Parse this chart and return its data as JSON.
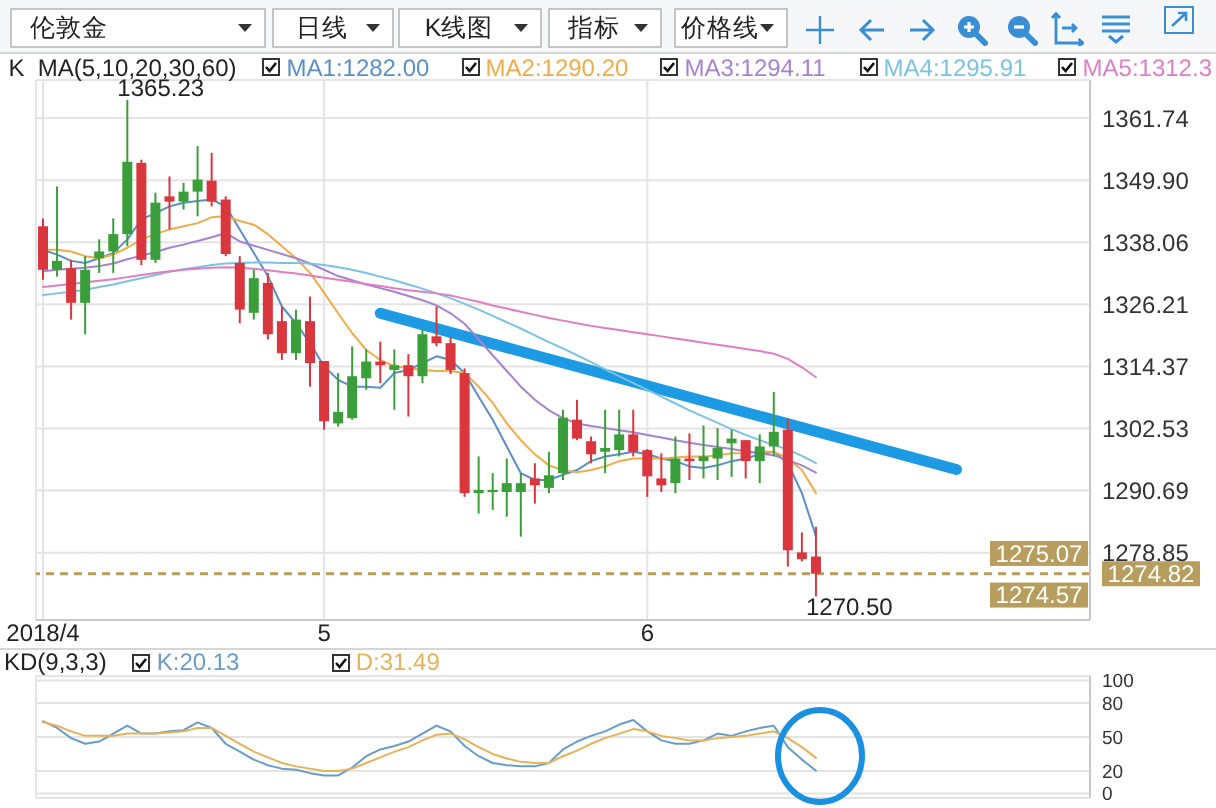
{
  "chart_data": [
    {
      "type": "candlestick",
      "title": "伦敦金",
      "annotations": [
        "日线",
        "K线图",
        "指标",
        "价格线",
        "1365.23",
        "1270.50",
        {
          "text": "1275.07",
          "y": 1275.07
        },
        {
          "text": "1274.57",
          "y": 1274.57
        }
      ],
      "legend_title": "K  MA(5,10,20,30,60)",
      "legend": "top right",
      "grid": true,
      "marker": "none",
      "categories": [
        "2018/4",
        null,
        null,
        null,
        null,
        null,
        null,
        null,
        null,
        null,
        null,
        null,
        null,
        null,
        null,
        null,
        null,
        null,
        null,
        null,
        "5",
        null,
        null,
        null,
        null,
        null,
        null,
        null,
        null,
        null,
        null,
        null,
        null,
        null,
        null,
        null,
        null,
        null,
        null,
        null,
        null,
        null,
        null,
        "6",
        null,
        null,
        null,
        null,
        null,
        null,
        null,
        null,
        null,
        null,
        null,
        null,
        null,
        null,
        null,
        null,
        null,
        null,
        null,
        null,
        null,
        null,
        null,
        null,
        null,
        null,
        null,
        null,
        null,
        null,
        null
      ],
      "ohlc": [
        [
          1341.1,
          1342.6,
          1330.9,
          1332.8
        ],
        [
          1332.8,
          1348.7,
          1331.5,
          1334.5
        ],
        [
          1333.1,
          1334.7,
          1323.3,
          1326.5
        ],
        [
          1326.5,
          1335.4,
          1320.5,
          1332.8
        ],
        [
          1335.0,
          1338.6,
          1332.2,
          1336.3
        ],
        [
          1336.3,
          1342.6,
          1332.2,
          1339.6
        ],
        [
          1339.6,
          1365.23,
          1337.3,
          1353.4
        ],
        [
          1353.2,
          1353.8,
          1333.7,
          1334.7
        ],
        [
          1334.7,
          1347.5,
          1334.1,
          1345.6
        ],
        [
          1346.8,
          1350.6,
          1340.5,
          1345.8
        ],
        [
          1345.8,
          1349.4,
          1344.3,
          1347.7
        ],
        [
          1347.7,
          1356.4,
          1343.0,
          1350.0
        ],
        [
          1349.8,
          1355.1,
          1344.9,
          1345.8
        ],
        [
          1346.2,
          1346.8,
          1335.4,
          1335.8
        ],
        [
          1334.1,
          1335.4,
          1322.6,
          1325.2
        ],
        [
          1324.6,
          1332.8,
          1323.3,
          1331.2
        ],
        [
          1330.3,
          1332.2,
          1319.5,
          1320.5
        ],
        [
          1323.0,
          1325.8,
          1315.6,
          1316.9
        ],
        [
          1316.9,
          1325.2,
          1315.6,
          1323.3
        ],
        [
          1323.0,
          1327.7,
          1310.5,
          1315.0
        ],
        [
          1315.4,
          1315.4,
          1302.3,
          1303.9
        ],
        [
          1303.5,
          1313.1,
          1302.9,
          1305.7
        ],
        [
          1304.5,
          1318.2,
          1304.2,
          1312.5
        ],
        [
          1312.1,
          1317.6,
          1309.9,
          1315.3
        ],
        [
          1315.3,
          1319.1,
          1311.2,
          1314.6
        ],
        [
          1313.7,
          1317.6,
          1306.1,
          1314.6
        ],
        [
          1314.6,
          1316.7,
          1304.8,
          1312.5
        ],
        [
          1312.5,
          1321.4,
          1311.2,
          1320.5
        ],
        [
          1320.1,
          1325.8,
          1318.2,
          1318.8
        ],
        [
          1318.8,
          1320.0,
          1312.9,
          1313.7
        ],
        [
          1313.1,
          1314.0,
          1289.5,
          1290.2
        ],
        [
          1290.2,
          1297.2,
          1286.3,
          1290.8
        ],
        [
          1290.4,
          1294.0,
          1287.0,
          1290.8
        ],
        [
          1290.4,
          1296.8,
          1285.7,
          1292.1
        ],
        [
          1290.4,
          1294.0,
          1281.9,
          1292.1
        ],
        [
          1293.0,
          1295.9,
          1288.2,
          1291.7
        ],
        [
          1291.2,
          1298.1,
          1290.2,
          1293.6
        ],
        [
          1294.0,
          1306.1,
          1292.7,
          1304.6
        ],
        [
          1304.2,
          1308.0,
          1300.3,
          1300.6
        ],
        [
          1300.1,
          1301.0,
          1295.9,
          1297.6
        ],
        [
          1298.1,
          1306.1,
          1294.0,
          1298.8
        ],
        [
          1298.4,
          1306.1,
          1297.2,
          1301.4
        ],
        [
          1301.4,
          1306.1,
          1297.2,
          1298.1
        ],
        [
          1298.4,
          1298.6,
          1289.5,
          1293.4
        ],
        [
          1293.0,
          1297.8,
          1290.4,
          1291.7
        ],
        [
          1292.1,
          1301.0,
          1290.2,
          1296.8
        ],
        [
          1296.8,
          1301.6,
          1292.7,
          1296.3
        ],
        [
          1296.3,
          1303.1,
          1293.0,
          1297.2
        ],
        [
          1296.8,
          1302.6,
          1292.7,
          1298.8
        ],
        [
          1299.7,
          1302.3,
          1293.3,
          1300.6
        ],
        [
          1300.3,
          1300.3,
          1293.0,
          1296.3
        ],
        [
          1296.3,
          1301.4,
          1292.1,
          1299.1
        ],
        [
          1299.1,
          1309.5,
          1297.2,
          1301.9
        ],
        [
          1302.3,
          1304.4,
          1276.2,
          1279.3
        ],
        [
          1278.9,
          1282.7,
          1277.2,
          1277.6
        ],
        [
          1278.1,
          1283.8,
          1270.5,
          1274.82
        ],
        null,
        null,
        null,
        null,
        null,
        null,
        null,
        null,
        null,
        null,
        null,
        null,
        null,
        null,
        null,
        null,
        null,
        null,
        null
      ],
      "colors": [
        "#d9363e",
        "#3a9e3a",
        "#d9363e",
        "#3a9e3a",
        "#3a9e3a",
        "#3a9e3a",
        "#3a9e3a",
        "#d9363e",
        "#3a9e3a",
        "#d9363e",
        "#3a9e3a",
        "#3a9e3a",
        "#d9363e",
        "#d9363e",
        "#d9363e",
        "#3a9e3a",
        "#d9363e",
        "#d9363e",
        "#3a9e3a",
        "#d9363e",
        "#d9363e",
        "#3a9e3a",
        "#3a9e3a",
        "#3a9e3a",
        "#d9363e",
        "#3a9e3a",
        "#d9363e",
        "#3a9e3a",
        "#d9363e",
        "#d9363e",
        "#d9363e",
        "#3a9e3a",
        "#3a9e3a",
        "#3a9e3a",
        "#3a9e3a",
        "#d9363e",
        "#3a9e3a",
        "#3a9e3a",
        "#d9363e",
        "#d9363e",
        "#3a9e3a",
        "#3a9e3a",
        "#d9363e",
        "#d9363e",
        "#d9363e",
        "#3a9e3a",
        "#d9363e",
        "#3a9e3a",
        "#3a9e3a",
        "#3a9e3a",
        "#d9363e",
        "#3a9e3a",
        "#3a9e3a",
        "#d9363e",
        "#d9363e",
        "#d9363e",
        null,
        null,
        null,
        null,
        null,
        null,
        null,
        null,
        null,
        null,
        null,
        null,
        null,
        null,
        null,
        null,
        null,
        null,
        null
      ],
      "series": [
        {
          "type": "line",
          "color": "#1c9be4",
          "values": [
            null,
            null,
            null,
            null,
            null,
            null,
            null,
            null,
            null,
            null,
            null,
            null,
            null,
            null,
            null,
            null,
            null,
            null,
            null,
            null,
            null,
            null,
            null,
            null,
            1324.5,
            null,
            null,
            null,
            null,
            null,
            null,
            null,
            null,
            null,
            null,
            null,
            null,
            null,
            null,
            null,
            null,
            null,
            null,
            null,
            null,
            null,
            null,
            null,
            null,
            null,
            null,
            null,
            null,
            null,
            null,
            null,
            null,
            null,
            null,
            null,
            null,
            null,
            null,
            null,
            null,
            1294.7,
            null,
            null,
            null,
            null,
            null,
            null,
            null,
            null,
            null
          ]
        },
        {
          "type": "line",
          "name": "MA1:1282.00",
          "color": "#5a8fc8",
          "values": [
            1336.6,
            1335.7,
            1334.5,
            1334.1,
            1335.0,
            1336.0,
            1338.6,
            1342.4,
            1343.6,
            1344.9,
            1345.6,
            1345.9,
            1346.2,
            1344.9,
            1340.5,
            1336.0,
            1331.6,
            1325.8,
            1322.6,
            1318.8,
            1314.4,
            1311.8,
            1310.5,
            1310.5,
            1310.3,
            1313.1,
            1313.7,
            1315.0,
            1316.3,
            1315.6,
            1313.1,
            1308.6,
            1304.2,
            1299.1,
            1294.0,
            1292.7,
            1292.7,
            1293.7,
            1294.6,
            1296.3,
            1297.2,
            1297.6,
            1298.1,
            1297.6,
            1296.8,
            1296.3,
            1295.3,
            1295.0,
            1295.5,
            1296.3,
            1296.8,
            1297.6,
            1298.1,
            1295.9,
            1290.2,
            1282,
            null,
            null,
            null,
            null,
            null,
            null,
            null,
            null,
            null,
            null,
            null,
            null,
            null,
            null,
            null,
            null,
            null,
            null,
            null
          ]
        },
        {
          "type": "line",
          "name": "MA2:1290.20",
          "color": "#f0ac48",
          "values": [
            1336.6,
            1336.6,
            1336.3,
            1335.4,
            1335.0,
            1335.7,
            1337.0,
            1338.6,
            1339.6,
            1340.5,
            1341.1,
            1341.7,
            1342.8,
            1343.0,
            1342.1,
            1341.4,
            1339.6,
            1337.3,
            1335.0,
            1332.2,
            1328.4,
            1324.5,
            1320.7,
            1317.5,
            1315.6,
            1314.4,
            1314.0,
            1313.7,
            1313.5,
            1313.5,
            1313.1,
            1310.5,
            1307.4,
            1303.5,
            1300.3,
            1297.6,
            1295.5,
            1294.6,
            1294.2,
            1294.6,
            1295.3,
            1296.3,
            1296.8,
            1296.8,
            1296.8,
            1297.0,
            1297.2,
            1297.2,
            1297.4,
            1297.8,
            1297.8,
            1298.1,
            1298.1,
            1296.8,
            1294.6,
            1290.2,
            null,
            null,
            null,
            null,
            null,
            null,
            null,
            null,
            null,
            null,
            null,
            null,
            null,
            null,
            null,
            null,
            null,
            null,
            null
          ]
        },
        {
          "type": "line",
          "name": "MA3:1294.11",
          "color": "#a882d2",
          "values": [
            1332.5,
            1332.8,
            1333.0,
            1333.2,
            1333.5,
            1334.0,
            1334.8,
            1335.5,
            1336.2,
            1337.0,
            1337.6,
            1338.3,
            1339.0,
            1339.8,
            1338.2,
            1337.4,
            1336.6,
            1335.8,
            1335.0,
            1334.0,
            1332.8,
            1331.6,
            1330.8,
            1330.0,
            1329.3,
            1328.6,
            1327.8,
            1327.0,
            1326.0,
            1324.5,
            1322.5,
            1319.5,
            1316.5,
            1313.5,
            1310.5,
            1308.0,
            1306.0,
            1304.5,
            1303.5,
            1303.0,
            1302.6,
            1302.2,
            1301.8,
            1301.3,
            1300.8,
            1300.3,
            1299.8,
            1299.4,
            1299.0,
            1298.6,
            1298.2,
            1297.8,
            1297.4,
            1296.5,
            1295.5,
            1294.11,
            null,
            null,
            null,
            null,
            null,
            null,
            null,
            null,
            null,
            null,
            null,
            null,
            null,
            null,
            null,
            null,
            null,
            null,
            null
          ]
        },
        {
          "type": "line",
          "name": "MA4:1295.91",
          "color": "#7cc2e2",
          "values": [
            1328.0,
            1328.3,
            1328.6,
            1329.0,
            1329.5,
            1330.0,
            1330.6,
            1331.2,
            1331.8,
            1332.4,
            1332.9,
            1333.3,
            1333.7,
            1334.0,
            1334.1,
            1334.2,
            1334.2,
            1334.1,
            1334.1,
            1334.0,
            1333.7,
            1333.3,
            1332.8,
            1332.2,
            1331.5,
            1330.8,
            1330.0,
            1329.2,
            1328.3,
            1327.4,
            1326.3,
            1325.2,
            1324.0,
            1322.8,
            1321.6,
            1320.3,
            1319.0,
            1317.8,
            1316.5,
            1315.2,
            1313.8,
            1312.5,
            1311.2,
            1309.9,
            1308.6,
            1307.3,
            1306.0,
            1304.8,
            1303.6,
            1302.4,
            1301.3,
            1300.3,
            1299.4,
            1298.5,
            1297.3,
            1295.91,
            null,
            null,
            null,
            null,
            null,
            null,
            null,
            null,
            null,
            null,
            null,
            null,
            null,
            null,
            null,
            null,
            null,
            null,
            null
          ]
        },
        {
          "type": "line",
          "name": "MA5:1312.3",
          "color": "#e07ec2",
          "values": [
            1329.5,
            1329.8,
            1330.1,
            1330.4,
            1330.7,
            1331.0,
            1331.4,
            1331.8,
            1332.2,
            1332.5,
            1332.8,
            1333.0,
            1333.2,
            1333.3,
            1333.2,
            1333.0,
            1332.7,
            1332.4,
            1332.1,
            1331.7,
            1331.3,
            1330.9,
            1330.5,
            1330.1,
            1329.7,
            1329.3,
            1328.9,
            1328.6,
            1328.3,
            1327.9,
            1327.3,
            1326.7,
            1326.0,
            1325.4,
            1324.8,
            1324.2,
            1323.6,
            1323.1,
            1322.6,
            1322.1,
            1321.7,
            1321.3,
            1320.9,
            1320.5,
            1320.1,
            1319.7,
            1319.3,
            1318.9,
            1318.5,
            1318.1,
            1317.7,
            1317.3,
            1316.8,
            1315.8,
            1314.2,
            1312.3,
            null,
            null,
            null,
            null,
            null,
            null,
            null,
            null,
            null,
            null,
            null,
            null,
            null,
            null,
            null,
            null,
            null,
            null,
            null
          ]
        }
      ],
      "ylim": [
        1266,
        1369
      ],
      "yticks": [
        1278.85,
        1290.69,
        1302.53,
        1314.37,
        1326.21,
        1338.06,
        {
          "value": 1349.9,
          "label": "1349.90"
        },
        1361.74
      ],
      "ref_lines": [
        {
          "axis": "y",
          "value": 1274.82,
          "label": "1274.82",
          "color": "#b89e5e",
          "line_style": "dashed"
        }
      ]
    },
    {
      "type": "line",
      "legend_title": "KD(9,3,3)",
      "legend": "top left",
      "grid": true,
      "marker": "none",
      "tick_labels": "y",
      "categories": [
        null,
        null,
        null,
        null,
        null,
        null,
        null,
        null,
        null,
        null,
        null,
        null,
        null,
        null,
        null,
        null,
        null,
        null,
        null,
        null,
        null,
        null,
        null,
        null,
        null,
        null,
        null,
        null,
        null,
        null,
        null,
        null,
        null,
        null,
        null,
        null,
        null,
        null,
        null,
        null,
        null,
        null,
        null,
        null,
        null,
        null,
        null,
        null,
        null,
        null,
        null,
        null,
        null,
        null,
        null,
        null,
        null,
        null,
        null,
        null,
        null,
        null,
        null,
        null,
        null,
        null,
        null,
        null,
        null,
        null,
        null,
        null,
        null,
        null,
        null
      ],
      "series": [
        {
          "name": "K:20.13",
          "color": "#6a9cc8",
          "values": [
            64,
            58,
            49,
            44,
            46,
            53,
            60,
            53,
            53,
            55,
            56,
            63,
            58,
            44,
            37,
            30,
            25,
            22,
            21,
            18,
            16,
            16,
            23,
            33,
            39,
            42,
            46,
            53,
            60,
            55,
            42,
            33,
            27,
            25,
            24,
            24,
            27,
            39,
            46,
            51,
            55,
            61,
            65,
            55,
            47,
            44,
            44,
            47,
            53,
            51,
            55,
            58,
            60,
            41,
            30,
            20.13,
            null,
            null,
            null,
            null,
            null,
            null,
            null,
            null,
            null,
            null,
            null,
            null,
            null,
            null,
            null,
            null,
            null,
            null,
            null
          ]
        },
        {
          "name": "D:31.49",
          "color": "#e6b25a",
          "values": [
            63,
            60,
            55,
            51,
            51,
            51,
            53,
            53,
            53,
            54,
            55,
            58,
            58,
            51,
            44,
            37,
            32,
            27,
            24,
            22,
            20,
            20,
            22,
            27,
            32,
            37,
            41,
            47,
            52,
            53,
            48,
            41,
            35,
            31,
            28,
            27,
            27,
            33,
            38,
            44,
            49,
            53,
            57,
            55,
            51,
            49,
            47,
            47,
            49,
            50,
            51,
            53,
            55,
            49,
            41,
            31.49,
            null,
            null,
            null,
            null,
            null,
            null,
            null,
            null,
            null,
            null,
            null,
            null,
            null,
            null,
            null,
            null,
            null,
            null,
            null
          ]
        }
      ],
      "ylim": [
        -4,
        104
      ],
      "yticks": [
        0,
        20,
        50,
        80,
        100
      ]
    }
  ]
}
